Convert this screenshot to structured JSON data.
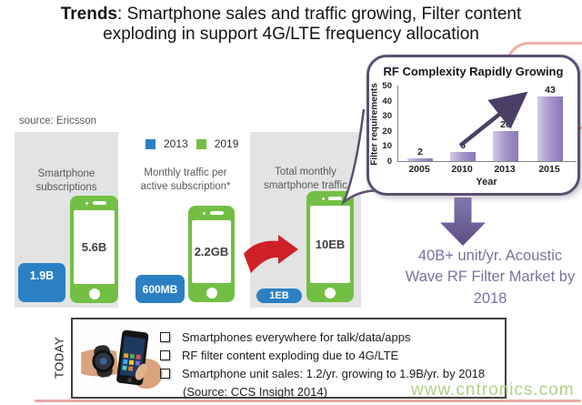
{
  "slide": {
    "title_bold": "Trends",
    "title_rest": ": Smartphone sales and traffic growing, Filter content",
    "title_line2": "exploding in support 4G/LTE frequency allocation"
  },
  "ericsson": {
    "source": "source: Ericsson",
    "legend": [
      {
        "label": "2013",
        "color": "#2b80c4"
      },
      {
        "label": "2019",
        "color": "#72bf44"
      }
    ],
    "panels": [
      {
        "caption": "Smartphone subscriptions",
        "value_2013": "1.9B",
        "value_2019": "5.6B"
      },
      {
        "caption": "Monthly traffic per active subscription*",
        "value_2013": "600MB",
        "value_2019": "2.2GB"
      },
      {
        "caption": "Total monthly smartphone traffic",
        "value_2013": "1EB",
        "value_2019": "10EB"
      }
    ]
  },
  "chart_data": {
    "type": "bar",
    "title": "RF Complexity Rapidly Growing",
    "categories": [
      "2005",
      "2010",
      "2013",
      "2015"
    ],
    "values": [
      2,
      6,
      20,
      43
    ],
    "xlabel": "Year",
    "ylabel": "Filter requirements",
    "ylim": [
      0,
      50
    ],
    "yticks": [
      0,
      10,
      20,
      30,
      40,
      50
    ],
    "bar_color": "#9d8ac2",
    "annotation": "upward trend arrow",
    "legend_position": "none",
    "grid": false
  },
  "market": {
    "text": "40B+ unit/yr. Acoustic Wave RF Filter Market by 2018",
    "color": "#7e6fa3"
  },
  "today": {
    "label": "TODAY",
    "photo_alt": "smartphone-and-smartwatch-photo",
    "bullets": [
      "Smartphones everywhere for talk/data/apps",
      "RF filter content exploding due to 4G/LTE",
      "Smartphone unit sales: 1.2/yr. growing to 1.9B/yr. by 2018"
    ],
    "source": "(Source: CCS Insight 2014)"
  },
  "watermark": "www.cntronics.com",
  "colors": {
    "green_2019": "#72bf44",
    "blue_2013": "#2b80c4",
    "red_arrow": "#ce2127",
    "purple_arrow": "#6f5f99",
    "chart_border": "#5b5070",
    "pink_frame": "#eaa9a4"
  }
}
